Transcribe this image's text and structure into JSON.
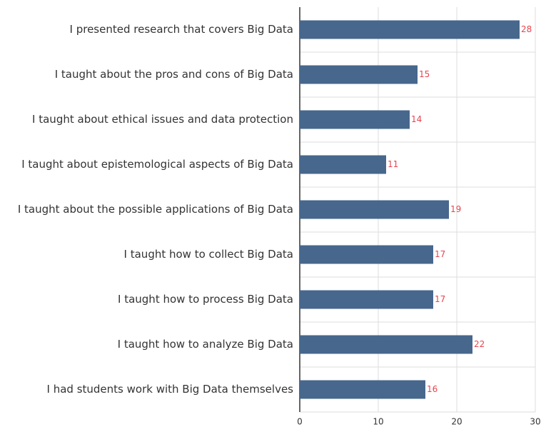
{
  "chart_data": {
    "type": "bar",
    "orientation": "horizontal",
    "categories": [
      "I presented research that covers Big Data",
      "I taught about the pros and cons of Big Data",
      "I taught about ethical issues and data protection",
      "I taught about epistemological aspects of Big Data",
      "I taught about the possible applications of Big Data",
      "I taught how to collect Big Data",
      "I taught how to process Big Data",
      "I taught how to analyze Big Data",
      "I had students work with Big Data themselves"
    ],
    "values": [
      28,
      15,
      14,
      11,
      19,
      17,
      17,
      22,
      16
    ],
    "color": "#47678c",
    "label_color": "#e8454f",
    "xlim": [
      0,
      30
    ],
    "xticks": [
      0,
      10,
      20,
      30
    ],
    "grid": true
  }
}
